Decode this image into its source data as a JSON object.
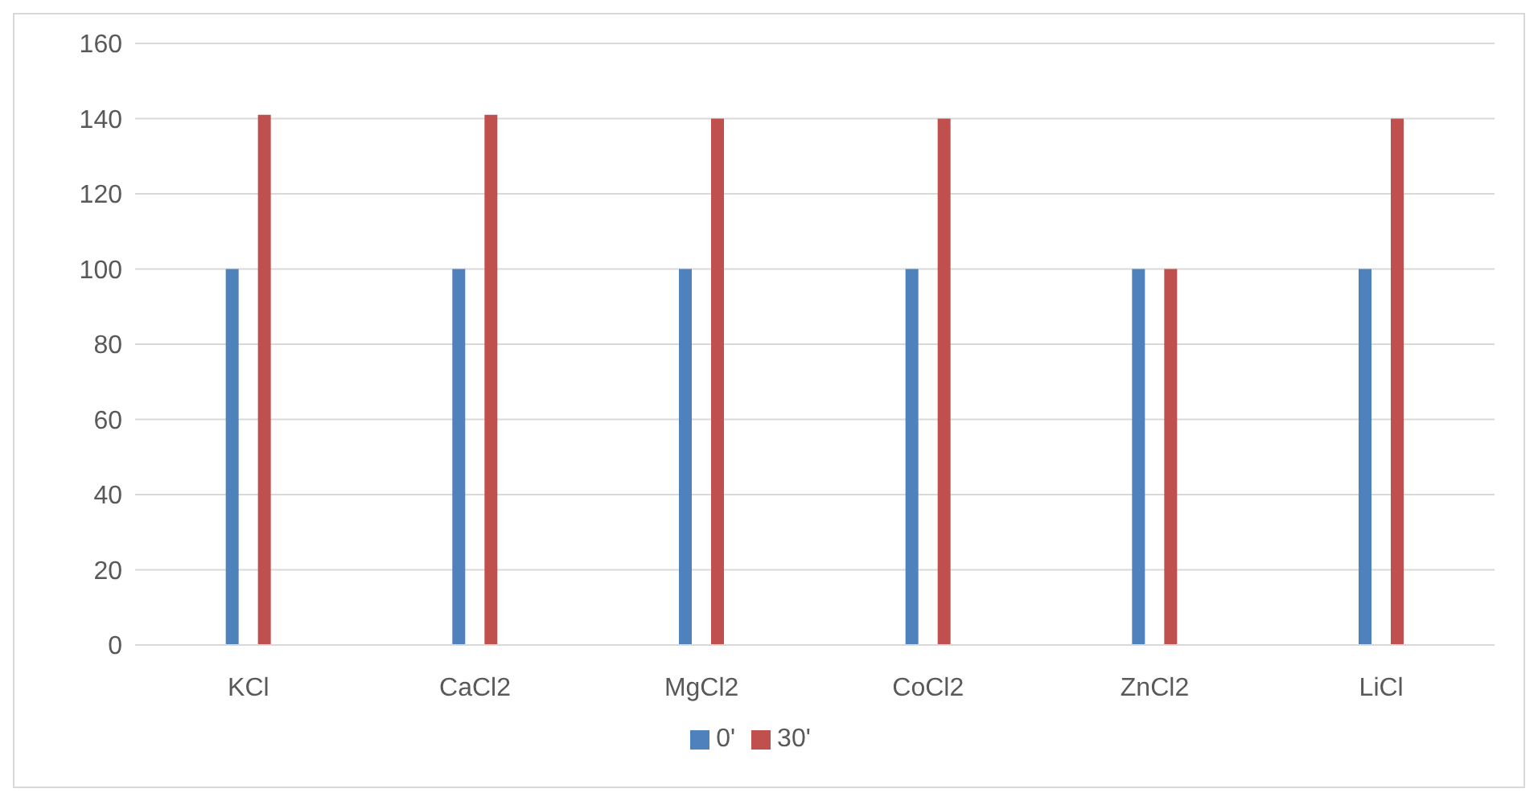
{
  "chart_data": {
    "type": "bar",
    "categories": [
      "KCl",
      "CaCl2",
      "MgCl2",
      "CoCl2",
      "ZnCl2",
      "LiCl"
    ],
    "series": [
      {
        "name": "0'",
        "color": "#4f81bd",
        "values": [
          100,
          100,
          100,
          100,
          100,
          100
        ]
      },
      {
        "name": "30'",
        "color": "#c0504d",
        "values": [
          141,
          141,
          140,
          140,
          100,
          140
        ]
      }
    ],
    "ylim": [
      0,
      160
    ],
    "yticks": [
      0,
      20,
      40,
      60,
      80,
      100,
      120,
      140,
      160
    ],
    "grid": "y",
    "legend": "bottom"
  }
}
